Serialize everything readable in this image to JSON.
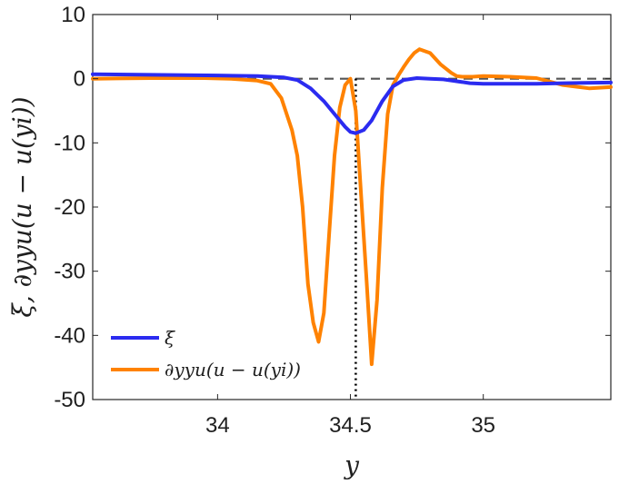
{
  "chart_data": {
    "type": "line",
    "xlabel": "y",
    "ylabel": "ξ, ∂yyu(u − u(yi))",
    "xlim": [
      33.53,
      35.48
    ],
    "ylim": [
      -50,
      10
    ],
    "xticks": [
      34,
      34.5,
      35
    ],
    "xtick_labels": [
      "34",
      "34.5",
      "35"
    ],
    "yticks": [
      10,
      0,
      -10,
      -20,
      -30,
      -40,
      -50
    ],
    "ytick_labels": [
      "10",
      "0",
      "-10",
      "-20",
      "-30",
      "-40",
      "-50"
    ],
    "grid": false,
    "legend_position": "bottom-left",
    "series": [
      {
        "name": "ξ",
        "color": "#2b2bf0",
        "x": [
          33.53,
          33.75,
          34.0,
          34.15,
          34.25,
          34.3,
          34.35,
          34.4,
          34.45,
          34.48,
          34.5,
          34.52,
          34.55,
          34.58,
          34.62,
          34.66,
          34.7,
          34.75,
          34.8,
          34.85,
          34.9,
          34.95,
          35.0,
          35.1,
          35.2,
          35.3,
          35.48
        ],
        "values": [
          0.7,
          0.6,
          0.5,
          0.4,
          0.2,
          -0.2,
          -1.5,
          -3.5,
          -6.0,
          -7.5,
          -8.3,
          -8.5,
          -8.0,
          -6.5,
          -3.5,
          -1.2,
          -0.2,
          0.1,
          0.0,
          -0.1,
          -0.4,
          -0.7,
          -0.8,
          -0.8,
          -0.8,
          -0.7,
          -0.6
        ]
      },
      {
        "name": "∂yyu(u − u(yi))",
        "color": "#ff8200",
        "x": [
          33.53,
          33.75,
          33.95,
          34.05,
          34.15,
          34.2,
          34.24,
          34.28,
          34.3,
          34.32,
          34.34,
          34.36,
          34.38,
          34.4,
          34.42,
          34.44,
          34.46,
          34.48,
          34.5,
          34.52,
          34.54,
          34.56,
          34.58,
          34.6,
          34.62,
          34.64,
          34.66,
          34.68,
          34.7,
          34.72,
          34.74,
          34.76,
          34.8,
          34.84,
          34.88,
          34.9,
          34.92,
          34.96,
          35.0,
          35.1,
          35.2,
          35.3,
          35.4,
          35.48
        ],
        "values": [
          0.0,
          0.1,
          0.1,
          0.0,
          -0.3,
          -0.8,
          -3.0,
          -8.0,
          -12.0,
          -20.0,
          -32.0,
          -38.0,
          -41.0,
          -36.5,
          -24.0,
          -12.0,
          -4.5,
          -1.0,
          0.0,
          -5.0,
          -18.0,
          -31.0,
          -44.5,
          -34.5,
          -17.0,
          -5.5,
          -1.0,
          0.5,
          1.8,
          3.0,
          4.0,
          4.6,
          4.0,
          2.2,
          0.9,
          0.4,
          0.3,
          0.3,
          0.4,
          0.3,
          0.1,
          -1.0,
          -1.5,
          -1.3
        ]
      }
    ],
    "reference_lines": [
      {
        "type": "horizontal",
        "value": 0,
        "style": "dashed",
        "color": "#555555"
      },
      {
        "type": "vertical",
        "value": 34.52,
        "style": "dotted",
        "color": "#000000"
      }
    ]
  }
}
